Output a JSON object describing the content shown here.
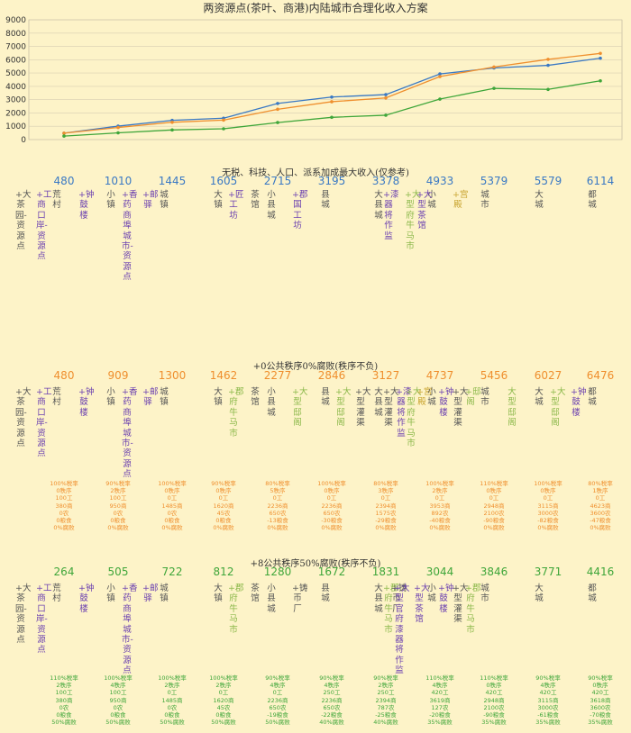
{
  "chart_data": {
    "type": "line",
    "title": "两资源点(茶叶、商港)内陆城市合理化收入方案",
    "y_ticks": [
      "9000",
      "8000",
      "7000",
      "6000",
      "5000",
      "4000",
      "3000",
      "2000",
      "1000",
      "0"
    ],
    "ylim": [
      0,
      9000
    ],
    "grid": true,
    "x": [
      1,
      2,
      3,
      4,
      5,
      6,
      7,
      8,
      9,
      10,
      11
    ],
    "series": [
      {
        "color": "#3a79c4",
        "values": [
          480,
          1010,
          1445,
          1605,
          2715,
          3195,
          3378,
          4933,
          5379,
          5579,
          6114
        ]
      },
      {
        "color": "#ef8f2e",
        "values": [
          480,
          909,
          1300,
          1462,
          2277,
          2846,
          3127,
          4737,
          5456,
          6027,
          6476
        ]
      },
      {
        "color": "#3fa63a",
        "values": [
          264,
          505,
          722,
          812,
          1280,
          1672,
          1831,
          3044,
          3846,
          3771,
          4416
        ]
      }
    ]
  },
  "colors": {
    "blue": "#3a79c4",
    "orange": "#ef8f2e",
    "green": "#3fa63a",
    "purple": "#6a3fb0",
    "gray": "#555555",
    "lime": "#8bb84a",
    "gold": "#c9a532"
  },
  "sections": [
    {
      "title": "无税、科技、人口、派系加成最大收入(仅参考)",
      "value_color": "#3a79c4",
      "values": [
        "480",
        "1010",
        "1445",
        "1605",
        "2715",
        "3195",
        "3378",
        "4933",
        "5379",
        "5579",
        "6114"
      ],
      "columns": [
        {
          "t": "+大茶园-资源点",
          "c": "#555555"
        },
        {
          "t": "+工商口岸-资源点",
          "c": "#6a3fb0"
        },
        {
          "t": "荒村",
          "c": "#555555"
        },
        {
          "t": "+钟鼓楼",
          "c": "#6a3fb0"
        },
        {
          "t": "小镇",
          "c": "#555555"
        },
        {
          "t": "+香药商埠城市-资源点",
          "c": "#6a3fb0"
        },
        {
          "t": "+邮驿",
          "c": "#6a3fb0"
        },
        {
          "t": "城镇",
          "c": "#555555"
        },
        {
          "t": "大镇",
          "c": "#555555"
        },
        {
          "t": "+匠工坊",
          "c": "#6a3fb0"
        },
        {
          "t": "茶馆",
          "c": "#555555"
        },
        {
          "t": "小县城",
          "c": "#555555"
        },
        {
          "t": "+郡国工坊",
          "c": "#6a3fb0"
        },
        {
          "t": "县城",
          "c": "#555555"
        },
        {
          "t": "大县城",
          "c": "#555555"
        },
        {
          "t": "+漆器将作监",
          "c": "#6a3fb0"
        },
        {
          "t": "+大型府牛马市",
          "c": "#8bb84a"
        },
        {
          "t": "小城",
          "c": "#555555"
        },
        {
          "t": "+大型茶馆",
          "c": "#6a3fb0"
        },
        {
          "t": "+宫殿",
          "c": "#c9a532"
        },
        {
          "t": "城市",
          "c": "#555555"
        },
        {
          "t": "大城",
          "c": "#555555"
        },
        {
          "t": "都城",
          "c": "#555555"
        }
      ],
      "stats": []
    },
    {
      "title": "+0公共秩序0%腐败(秩序不负)",
      "value_color": "#ef8f2e",
      "values": [
        "480",
        "909",
        "1300",
        "1462",
        "2277",
        "2846",
        "3127",
        "4737",
        "5456",
        "6027",
        "6476"
      ],
      "columns": [
        {
          "t": "+大茶园-资源点",
          "c": "#555555"
        },
        {
          "t": "+工商口岸-资源点",
          "c": "#6a3fb0"
        },
        {
          "t": "荒村",
          "c": "#555555"
        },
        {
          "t": "+钟鼓楼",
          "c": "#6a3fb0"
        },
        {
          "t": "小镇",
          "c": "#555555"
        },
        {
          "t": "+香药商埠城市-资源点",
          "c": "#6a3fb0"
        },
        {
          "t": "+邮驿",
          "c": "#6a3fb0"
        },
        {
          "t": "城镇",
          "c": "#555555"
        },
        {
          "t": "大镇",
          "c": "#555555"
        },
        {
          "t": "+郡府牛马市",
          "c": "#8bb84a"
        },
        {
          "t": "茶馆",
          "c": "#555555"
        },
        {
          "t": "小县城",
          "c": "#555555"
        },
        {
          "t": "+大型邸阁",
          "c": "#8bb84a"
        },
        {
          "t": "县城",
          "c": "#555555"
        },
        {
          "t": "+大型邸阁",
          "c": "#8bb84a"
        },
        {
          "t": "+大型灌渠",
          "c": "#555555"
        },
        {
          "t": "大县城",
          "c": "#555555"
        },
        {
          "t": "+大型灌渠",
          "c": "#555555"
        },
        {
          "t": "+漆器将作监",
          "c": "#6a3fb0"
        },
        {
          "t": "+大型府牛马市",
          "c": "#8bb84a"
        },
        {
          "t": "+宫殿",
          "c": "#c9a532"
        },
        {
          "t": "小城",
          "c": "#555555"
        },
        {
          "t": "+钟鼓楼",
          "c": "#6a3fb0"
        },
        {
          "t": "+大型灌渠",
          "c": "#555555"
        },
        {
          "t": "+邸阁",
          "c": "#8bb84a"
        },
        {
          "t": "城市",
          "c": "#555555"
        },
        {
          "t": "大型邸阁",
          "c": "#8bb84a"
        },
        {
          "t": "大城",
          "c": "#555555"
        },
        {
          "t": "+大型邸阁",
          "c": "#8bb84a"
        },
        {
          "t": "+钟鼓楼",
          "c": "#6a3fb0"
        },
        {
          "t": "都城",
          "c": "#555555"
        }
      ],
      "stats": [
        "100%税率\n0秩序\n100工\n380商\n0农\n0粮食\n0%腐败",
        "90%税率\n2秩序\n100工\n950商\n0农\n0粮食\n0%腐败",
        "100%税率\n0秩序\n0工\n1485商\n0农\n0粮食\n0%腐败",
        "90%税率\n0秩序\n0工\n1620商\n45农\n0粮食\n0%腐败",
        "80%税率\n5秩序\n0工\n2236商\n650农\n-13粮食\n0%腐败",
        "100%税率\n0秩序\n0工\n2236商\n650农\n-30粮食\n0%腐败",
        "80%税率\n3秩序\n0工\n2394商\n1575农\n-29粮食\n0%腐败",
        "100%税率\n2秩序\n0工\n3953商\n892农\n-40粮食\n0%腐败",
        "110%税率\n0秩序\n0工\n2948商\n2100农\n-90粮食\n0%腐败",
        "100%税率\n0秩序\n0工\n3115商\n3000农\n-82粮食\n0%腐败",
        "80%税率\n1秩序\n0工\n4623商\n3600农\n-47粮食\n0%腐败"
      ]
    },
    {
      "title": "+8公共秩序50%腐败(秩序不负)",
      "value_color": "#3fa63a",
      "values": [
        "264",
        "505",
        "722",
        "812",
        "1280",
        "1672",
        "1831",
        "3044",
        "3846",
        "3771",
        "4416"
      ],
      "columns": [
        {
          "t": "+大茶园-资源点",
          "c": "#555555"
        },
        {
          "t": "+工商口岸-资源点",
          "c": "#6a3fb0"
        },
        {
          "t": "荒村",
          "c": "#555555"
        },
        {
          "t": "+钟鼓楼",
          "c": "#6a3fb0"
        },
        {
          "t": "小镇",
          "c": "#555555"
        },
        {
          "t": "+香药商埠城市-资源点",
          "c": "#6a3fb0"
        },
        {
          "t": "+邮驿",
          "c": "#6a3fb0"
        },
        {
          "t": "城镇",
          "c": "#555555"
        },
        {
          "t": "大镇",
          "c": "#555555"
        },
        {
          "t": "+郡府牛马市",
          "c": "#8bb84a"
        },
        {
          "t": "茶馆",
          "c": "#555555"
        },
        {
          "t": "小县城",
          "c": "#555555"
        },
        {
          "t": "+铸币厂",
          "c": "#555555"
        },
        {
          "t": "县城",
          "c": "#555555"
        },
        {
          "t": "大县城",
          "c": "#555555"
        },
        {
          "t": "+郡府牛马市",
          "c": "#8bb84a"
        },
        {
          "t": "+铸币厂",
          "c": "#555555"
        },
        {
          "t": "+大型官府漆器将作监",
          "c": "#6a3fb0"
        },
        {
          "t": "+大型茶馆",
          "c": "#6a3fb0"
        },
        {
          "t": "小城",
          "c": "#555555"
        },
        {
          "t": "+钟鼓楼",
          "c": "#6a3fb0"
        },
        {
          "t": "+大型灌渠",
          "c": "#555555"
        },
        {
          "t": "城市",
          "c": "#555555"
        },
        {
          "t": "+郡府牛马市",
          "c": "#8bb84a"
        },
        {
          "t": "大城",
          "c": "#555555"
        },
        {
          "t": "都城",
          "c": "#555555"
        }
      ],
      "stats": [
        "110%税率\n2秩序\n100工\n380商\n0农\n0粮食\n50%腐败",
        "100%税率\n4秩序\n100工\n950商\n0农\n0粮食\n50%腐败",
        "100%税率\n2秩序\n0工\n1485商\n0农\n0粮食\n50%腐败",
        "100%税率\n2秩序\n0工\n1620商\n45农\n0粮食\n50%腐败",
        "90%税率\n4秩序\n0工\n2236商\n650农\n-19粮食\n50%腐败",
        "90%税率\n4秩序\n250工\n2236商\n650农\n-22粮食\n40%腐败",
        "90%税率\n2秩序\n250工\n2394商\n787农\n-25粮食\n40%腐败",
        "110%税率\n4秩序\n420工\n3619商\n127农\n-20粮食\n35%腐败",
        "110%税率\n0秩序\n420工\n2948商\n2100农\n-90粮食\n35%腐败",
        "90%税率\n4秩序\n420工\n3115商\n3000农\n-61粮食\n35%腐败",
        "90%税率\n0秩序\n420工\n3618商\n3600农\n-70粮食\n35%腐败"
      ]
    }
  ]
}
